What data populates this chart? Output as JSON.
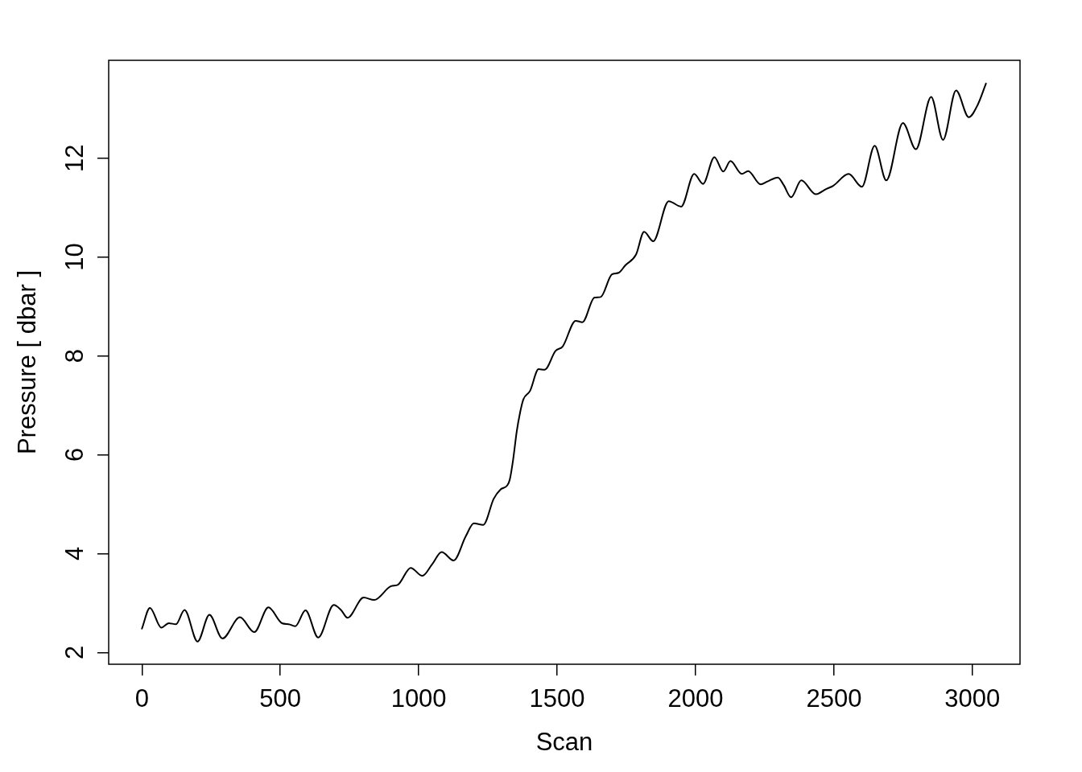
{
  "chart_data": {
    "type": "line",
    "xlabel": "Scan",
    "ylabel": "Pressure [ dbar ]",
    "x": [
      0,
      29,
      70,
      97,
      123,
      154,
      201,
      244,
      291,
      354,
      406,
      457,
      506,
      530,
      554,
      591,
      637,
      693,
      719,
      743,
      801,
      839,
      900,
      925,
      971,
      1013,
      1048,
      1083,
      1126,
      1170,
      1199,
      1233,
      1271,
      1296,
      1320,
      1329,
      1341,
      1354,
      1366,
      1378,
      1402,
      1433,
      1455,
      1494,
      1520,
      1567,
      1591,
      1635,
      1657,
      1698,
      1722,
      1746,
      1785,
      1814,
      1847,
      1903,
      1948,
      1995,
      2027,
      2068,
      2100,
      2126,
      2167,
      2190,
      2235,
      2260,
      2297,
      2318,
      2345,
      2382,
      2434,
      2473,
      2497,
      2553,
      2601,
      2647,
      2689,
      2749,
      2796,
      2851,
      2894,
      2941,
      2987,
      3020,
      3049
    ],
    "series": [
      {
        "color": "#000000",
        "values": [
          2.48,
          2.9,
          2.5,
          2.59,
          2.57,
          2.86,
          2.22,
          2.76,
          2.28,
          2.71,
          2.41,
          2.91,
          2.59,
          2.57,
          2.53,
          2.85,
          2.3,
          2.96,
          2.86,
          2.7,
          3.11,
          3.06,
          3.34,
          3.37,
          3.71,
          3.55,
          3.78,
          4.03,
          3.86,
          4.35,
          4.61,
          4.58,
          5.11,
          5.3,
          5.38,
          5.5,
          5.9,
          6.47,
          6.85,
          7.12,
          7.29,
          7.73,
          7.72,
          8.1,
          8.19,
          8.71,
          8.68,
          9.18,
          9.19,
          9.65,
          9.68,
          9.83,
          10.05,
          10.51,
          10.32,
          11.13,
          11.02,
          11.68,
          11.48,
          12.02,
          11.73,
          11.94,
          11.68,
          11.74,
          11.47,
          11.53,
          11.61,
          11.46,
          11.21,
          11.55,
          11.27,
          11.38,
          11.44,
          11.68,
          11.42,
          12.25,
          11.55,
          12.71,
          12.18,
          13.24,
          12.37,
          13.37,
          12.83,
          13.09,
          13.51
        ]
      }
    ],
    "xlim": [
      -120,
      3172
    ],
    "ylim": [
      1.76,
      13.98
    ],
    "xticks": [
      0,
      500,
      1000,
      1500,
      2000,
      2500,
      3000
    ],
    "yticks": [
      2,
      4,
      6,
      8,
      10,
      12
    ],
    "line_style": "solid"
  }
}
